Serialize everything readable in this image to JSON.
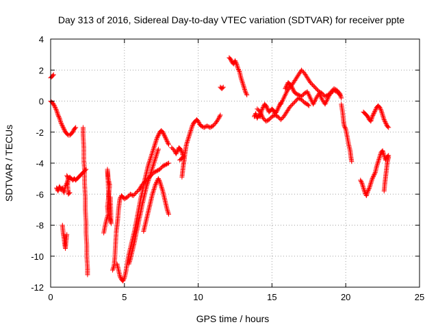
{
  "chart_data": {
    "type": "scatter",
    "title": "Day 313 of 2016, Sidereal Day-to-day VTEC variation (SDTVAR) for receiver ppte",
    "xlabel": "GPS time / hours",
    "ylabel": "SDTVAR / TECUs",
    "xlim": [
      0,
      25
    ],
    "ylim": [
      -12,
      4
    ],
    "xticks": [
      0,
      5,
      10,
      15,
      20,
      25
    ],
    "yticks": [
      -12,
      -10,
      -8,
      -6,
      -4,
      -2,
      0,
      2,
      4
    ],
    "grid": true,
    "marker": "+",
    "color": "#ff0000",
    "segments": [
      [
        [
          0.0,
          1.5
        ],
        [
          0.1,
          1.6
        ],
        [
          0.2,
          1.7
        ]
      ],
      [
        [
          0.0,
          0.0
        ],
        [
          0.1,
          -0.1
        ],
        [
          0.2,
          -0.2
        ],
        [
          0.3,
          -0.4
        ],
        [
          0.4,
          -0.6
        ],
        [
          0.5,
          -0.9
        ],
        [
          0.6,
          -1.1
        ],
        [
          0.7,
          -1.4
        ],
        [
          0.8,
          -1.6
        ],
        [
          0.9,
          -1.8
        ],
        [
          1.0,
          -2.0
        ],
        [
          1.1,
          -2.1
        ],
        [
          1.2,
          -2.2
        ],
        [
          1.3,
          -2.2
        ],
        [
          1.4,
          -2.1
        ],
        [
          1.5,
          -2.0
        ],
        [
          1.6,
          -1.8
        ],
        [
          1.7,
          -1.7
        ]
      ],
      [
        [
          0.4,
          -5.6
        ],
        [
          0.5,
          -5.8
        ],
        [
          0.6,
          -5.5
        ],
        [
          0.7,
          -5.7
        ],
        [
          0.8,
          -5.6
        ],
        [
          0.9,
          -5.9
        ],
        [
          1.0,
          -5.5
        ],
        [
          1.1,
          -5.3
        ],
        [
          1.2,
          -5.0
        ],
        [
          1.3,
          -4.9
        ],
        [
          1.4,
          -5.0
        ],
        [
          1.5,
          -5.1
        ],
        [
          1.6,
          -5.0
        ],
        [
          1.7,
          -5.1
        ],
        [
          1.8,
          -5.0
        ],
        [
          1.9,
          -4.9
        ],
        [
          2.0,
          -4.8
        ],
        [
          2.1,
          -4.7
        ],
        [
          2.2,
          -4.6
        ],
        [
          2.3,
          -4.5
        ],
        [
          2.4,
          -4.4
        ]
      ],
      [
        [
          0.8,
          -8.0
        ],
        [
          0.85,
          -8.5
        ],
        [
          0.9,
          -8.8
        ],
        [
          0.95,
          -9.2
        ],
        [
          1.0,
          -9.5
        ],
        [
          1.05,
          -9.0
        ],
        [
          1.1,
          -8.6
        ]
      ],
      [
        [
          1.1,
          -4.8
        ],
        [
          1.2,
          -5.0
        ],
        [
          1.15,
          -5.4
        ],
        [
          1.2,
          -6.0
        ],
        [
          1.3,
          -5.9
        ]
      ],
      [
        [
          2.2,
          -1.7
        ],
        [
          2.2,
          -2.2
        ],
        [
          2.25,
          -3.0
        ],
        [
          2.25,
          -3.8
        ],
        [
          2.3,
          -4.5
        ],
        [
          2.3,
          -5.3
        ],
        [
          2.35,
          -6.2
        ],
        [
          2.35,
          -7.0
        ],
        [
          2.4,
          -7.8
        ],
        [
          2.4,
          -8.5
        ],
        [
          2.45,
          -9.3
        ],
        [
          2.45,
          -10.0
        ],
        [
          2.5,
          -10.8
        ],
        [
          2.5,
          -11.2
        ]
      ],
      [
        [
          3.6,
          -8.5
        ],
        [
          3.7,
          -8.0
        ],
        [
          3.8,
          -7.6
        ],
        [
          3.9,
          -7.3
        ],
        [
          3.85,
          -6.8
        ],
        [
          3.95,
          -6.0
        ],
        [
          4.0,
          -5.4
        ],
        [
          3.9,
          -5.0
        ],
        [
          3.85,
          -4.4
        ],
        [
          4.0,
          -7.5
        ],
        [
          4.1,
          -7.9
        ],
        [
          4.05,
          -6.2
        ]
      ],
      [
        [
          4.2,
          -10.9
        ],
        [
          4.3,
          -10.6
        ],
        [
          4.35,
          -10.1
        ],
        [
          4.4,
          -9.2
        ],
        [
          4.45,
          -8.4
        ],
        [
          4.5,
          -8.0
        ],
        [
          4.55,
          -7.6
        ],
        [
          4.6,
          -7.0
        ],
        [
          4.65,
          -6.6
        ],
        [
          4.7,
          -6.3
        ],
        [
          4.8,
          -6.1
        ],
        [
          4.9,
          -6.2
        ],
        [
          5.0,
          -6.3
        ],
        [
          5.2,
          -6.2
        ],
        [
          5.4,
          -6.0
        ],
        [
          5.6,
          -6.1
        ],
        [
          5.8,
          -5.9
        ],
        [
          6.0,
          -5.7
        ],
        [
          6.2,
          -5.4
        ],
        [
          6.4,
          -5.2
        ],
        [
          6.6,
          -5.0
        ],
        [
          6.8,
          -4.8
        ],
        [
          7.0,
          -4.6
        ],
        [
          7.2,
          -4.5
        ],
        [
          7.4,
          -4.4
        ],
        [
          7.6,
          -4.2
        ],
        [
          7.8,
          -4.1
        ],
        [
          8.0,
          -4.0
        ]
      ],
      [
        [
          4.5,
          -10.5
        ],
        [
          4.6,
          -10.9
        ],
        [
          4.7,
          -11.3
        ],
        [
          4.8,
          -11.5
        ],
        [
          4.9,
          -11.6
        ],
        [
          5.0,
          -11.4
        ],
        [
          5.1,
          -11.0
        ],
        [
          5.2,
          -10.4
        ],
        [
          5.3,
          -9.9
        ],
        [
          5.4,
          -9.5
        ],
        [
          5.5,
          -9.1
        ],
        [
          5.6,
          -8.7
        ],
        [
          5.7,
          -8.3
        ],
        [
          5.8,
          -7.8
        ],
        [
          5.9,
          -7.3
        ],
        [
          6.0,
          -6.8
        ],
        [
          6.1,
          -6.3
        ],
        [
          6.2,
          -5.9
        ],
        [
          6.3,
          -5.4
        ],
        [
          6.4,
          -5.0
        ],
        [
          6.5,
          -4.6
        ],
        [
          6.6,
          -4.2
        ],
        [
          6.7,
          -3.9
        ],
        [
          6.8,
          -3.6
        ],
        [
          6.9,
          -3.3
        ],
        [
          7.0,
          -3.0
        ],
        [
          7.1,
          -2.7
        ],
        [
          7.2,
          -2.4
        ],
        [
          7.3,
          -2.2
        ],
        [
          7.4,
          -2.0
        ],
        [
          7.5,
          -1.9
        ],
        [
          7.6,
          -2.0
        ],
        [
          7.7,
          -2.2
        ],
        [
          7.8,
          -2.4
        ],
        [
          7.9,
          -2.6
        ],
        [
          8.0,
          -2.8
        ]
      ],
      [
        [
          5.3,
          -10.5
        ],
        [
          5.4,
          -10.2
        ],
        [
          5.5,
          -9.8
        ],
        [
          5.6,
          -9.4
        ],
        [
          5.7,
          -9.0
        ],
        [
          5.8,
          -8.5
        ],
        [
          5.9,
          -8.1
        ],
        [
          6.0,
          -7.6
        ],
        [
          6.1,
          -7.2
        ],
        [
          6.2,
          -6.7
        ],
        [
          6.3,
          -6.3
        ],
        [
          6.4,
          -5.9
        ],
        [
          6.5,
          -5.5
        ],
        [
          6.6,
          -5.2
        ],
        [
          6.7,
          -4.9
        ],
        [
          6.8,
          -4.6
        ],
        [
          6.9,
          -4.3
        ],
        [
          7.0,
          -4.0
        ],
        [
          7.1,
          -3.7
        ],
        [
          7.2,
          -3.4
        ],
        [
          7.3,
          -3.1
        ]
      ],
      [
        [
          6.3,
          -8.4
        ],
        [
          6.4,
          -8.0
        ],
        [
          6.5,
          -7.6
        ],
        [
          6.6,
          -7.2
        ],
        [
          6.7,
          -6.8
        ],
        [
          6.8,
          -6.4
        ],
        [
          6.9,
          -6.0
        ],
        [
          7.0,
          -5.7
        ],
        [
          7.1,
          -5.4
        ],
        [
          7.2,
          -5.2
        ],
        [
          7.3,
          -5.0
        ],
        [
          7.4,
          -5.2
        ],
        [
          7.5,
          -5.5
        ],
        [
          7.6,
          -5.8
        ],
        [
          7.7,
          -6.2
        ],
        [
          7.8,
          -6.6
        ],
        [
          7.9,
          -7.0
        ],
        [
          8.0,
          -7.3
        ]
      ],
      [
        [
          8.2,
          -3.0
        ],
        [
          8.4,
          -3.2
        ],
        [
          8.5,
          -3.4
        ],
        [
          8.6,
          -3.2
        ],
        [
          8.7,
          -3.0
        ],
        [
          8.8,
          -3.1
        ],
        [
          8.9,
          -3.3
        ],
        [
          9.0,
          -3.6
        ],
        [
          8.75,
          -3.8
        ]
      ],
      [
        [
          8.9,
          -4.9
        ],
        [
          8.95,
          -4.5
        ],
        [
          9.0,
          -4.1
        ],
        [
          9.05,
          -3.8
        ],
        [
          9.1,
          -3.4
        ],
        [
          9.15,
          -3.1
        ],
        [
          9.2,
          -2.8
        ],
        [
          9.3,
          -2.5
        ],
        [
          9.4,
          -2.2
        ],
        [
          9.5,
          -1.9
        ],
        [
          9.6,
          -1.6
        ],
        [
          9.7,
          -1.4
        ],
        [
          9.8,
          -1.3
        ],
        [
          9.9,
          -1.2
        ],
        [
          10.0,
          -1.3
        ],
        [
          10.1,
          -1.5
        ],
        [
          10.2,
          -1.6
        ],
        [
          10.4,
          -1.7
        ],
        [
          10.6,
          -1.6
        ],
        [
          10.8,
          -1.7
        ],
        [
          11.0,
          -1.6
        ],
        [
          11.2,
          -1.4
        ],
        [
          11.4,
          -1.1
        ],
        [
          11.5,
          -0.9
        ]
      ],
      [
        [
          11.5,
          0.9
        ],
        [
          11.6,
          0.8
        ],
        [
          11.7,
          0.9
        ]
      ],
      [
        [
          12.1,
          2.8
        ],
        [
          12.2,
          2.7
        ],
        [
          12.3,
          2.5
        ],
        [
          12.4,
          2.4
        ],
        [
          12.5,
          2.6
        ],
        [
          12.6,
          2.4
        ],
        [
          12.7,
          2.1
        ],
        [
          12.8,
          1.9
        ],
        [
          12.9,
          1.5
        ],
        [
          13.0,
          1.2
        ],
        [
          13.1,
          0.9
        ],
        [
          13.2,
          0.6
        ],
        [
          13.3,
          0.4
        ]
      ],
      [
        [
          13.8,
          -1.0
        ],
        [
          13.9,
          -0.8
        ],
        [
          14.0,
          -1.1
        ],
        [
          14.1,
          -0.9
        ],
        [
          14.2,
          -1.0
        ],
        [
          14.3,
          -0.6
        ],
        [
          14.4,
          -0.4
        ],
        [
          14.5,
          -0.2
        ],
        [
          14.6,
          -0.3
        ],
        [
          14.7,
          -0.5
        ],
        [
          14.8,
          -0.7
        ],
        [
          14.9,
          -0.6
        ],
        [
          15.0,
          -0.5
        ],
        [
          15.1,
          -0.6
        ],
        [
          15.2,
          -0.8
        ],
        [
          15.3,
          -0.7
        ],
        [
          15.4,
          -0.5
        ],
        [
          15.5,
          -0.3
        ],
        [
          15.6,
          -0.1
        ]
      ],
      [
        [
          14.0,
          -0.5
        ],
        [
          14.2,
          -0.7
        ],
        [
          14.4,
          -1.1
        ],
        [
          14.6,
          -1.3
        ],
        [
          14.8,
          -1.2
        ],
        [
          15.0,
          -1.0
        ],
        [
          15.2,
          -0.9
        ],
        [
          15.4,
          -1.0
        ],
        [
          15.6,
          -1.2
        ],
        [
          15.8,
          -1.0
        ],
        [
          16.0,
          -0.7
        ],
        [
          16.2,
          -0.4
        ],
        [
          16.4,
          -0.2
        ],
        [
          16.6,
          0.0
        ],
        [
          16.8,
          0.2
        ],
        [
          17.0,
          0.1
        ],
        [
          17.2,
          -0.1
        ],
        [
          17.4,
          -0.2
        ],
        [
          17.5,
          -0.3
        ]
      ],
      [
        [
          15.6,
          -0.2
        ],
        [
          15.8,
          0.2
        ],
        [
          16.0,
          0.6
        ],
        [
          16.2,
          0.9
        ],
        [
          16.4,
          1.1
        ],
        [
          16.6,
          1.4
        ],
        [
          16.8,
          1.7
        ],
        [
          17.0,
          2.0
        ],
        [
          17.2,
          1.8
        ],
        [
          17.4,
          1.5
        ],
        [
          17.6,
          1.2
        ],
        [
          17.8,
          1.0
        ],
        [
          18.0,
          0.8
        ],
        [
          18.2,
          0.6
        ],
        [
          18.4,
          0.5
        ],
        [
          18.6,
          0.3
        ],
        [
          18.8,
          0.4
        ],
        [
          19.0,
          0.5
        ],
        [
          19.2,
          0.7
        ],
        [
          19.4,
          0.6
        ],
        [
          19.6,
          0.4
        ]
      ],
      [
        [
          15.9,
          0.8
        ],
        [
          16.0,
          1.0
        ],
        [
          16.1,
          1.2
        ],
        [
          16.2,
          1.1
        ],
        [
          16.3,
          1.0
        ],
        [
          16.4,
          0.8
        ],
        [
          16.5,
          0.6
        ],
        [
          16.6,
          0.5
        ],
        [
          16.8,
          0.4
        ],
        [
          17.0,
          0.3
        ],
        [
          17.2,
          0.5
        ],
        [
          17.4,
          0.6
        ],
        [
          17.6,
          0.2
        ],
        [
          17.8,
          -0.2
        ],
        [
          18.0,
          0.2
        ],
        [
          18.2,
          0.5
        ],
        [
          18.4,
          0.1
        ],
        [
          18.6,
          -0.2
        ],
        [
          18.8,
          0.2
        ],
        [
          19.0,
          0.6
        ],
        [
          19.2,
          0.8
        ],
        [
          19.4,
          0.7
        ],
        [
          19.6,
          0.5
        ],
        [
          19.7,
          0.2
        ]
      ],
      [
        [
          19.7,
          -0.2
        ],
        [
          19.8,
          -0.8
        ],
        [
          19.85,
          -1.3
        ],
        [
          19.9,
          -1.6
        ],
        [
          20.0,
          -1.8
        ],
        [
          20.1,
          -2.3
        ],
        [
          20.2,
          -2.8
        ],
        [
          20.3,
          -3.2
        ],
        [
          20.35,
          -3.6
        ],
        [
          20.4,
          -3.9
        ]
      ],
      [
        [
          21.0,
          -5.1
        ],
        [
          21.1,
          -5.3
        ],
        [
          21.2,
          -5.6
        ],
        [
          21.3,
          -5.9
        ],
        [
          21.4,
          -6.1
        ],
        [
          21.5,
          -5.8
        ],
        [
          21.6,
          -5.6
        ],
        [
          21.7,
          -5.3
        ],
        [
          21.8,
          -5.0
        ],
        [
          21.9,
          -4.8
        ],
        [
          22.0,
          -4.6
        ],
        [
          22.1,
          -4.2
        ],
        [
          22.2,
          -3.9
        ],
        [
          22.3,
          -3.6
        ],
        [
          22.4,
          -3.3
        ],
        [
          22.5,
          -3.2
        ],
        [
          22.6,
          -3.5
        ],
        [
          22.7,
          -3.8
        ],
        [
          22.8,
          -3.6
        ],
        [
          22.9,
          -3.5
        ]
      ],
      [
        [
          21.2,
          -0.7
        ],
        [
          21.3,
          -0.8
        ],
        [
          21.4,
          -0.9
        ],
        [
          21.5,
          -1.0
        ],
        [
          21.6,
          -1.2
        ],
        [
          21.7,
          -1.3
        ],
        [
          21.8,
          -1.0
        ],
        [
          21.9,
          -0.8
        ],
        [
          22.0,
          -0.6
        ],
        [
          22.1,
          -0.4
        ],
        [
          22.2,
          -0.3
        ],
        [
          22.3,
          -0.4
        ],
        [
          22.4,
          -0.6
        ],
        [
          22.5,
          -0.9
        ],
        [
          22.6,
          -1.2
        ],
        [
          22.7,
          -1.4
        ],
        [
          22.8,
          -1.6
        ],
        [
          22.9,
          -1.7
        ]
      ],
      [
        [
          22.6,
          -5.8
        ],
        [
          22.65,
          -5.3
        ],
        [
          22.7,
          -4.9
        ],
        [
          22.75,
          -4.5
        ],
        [
          22.8,
          -4.1
        ],
        [
          22.85,
          -3.8
        ],
        [
          22.9,
          -3.6
        ]
      ]
    ]
  }
}
